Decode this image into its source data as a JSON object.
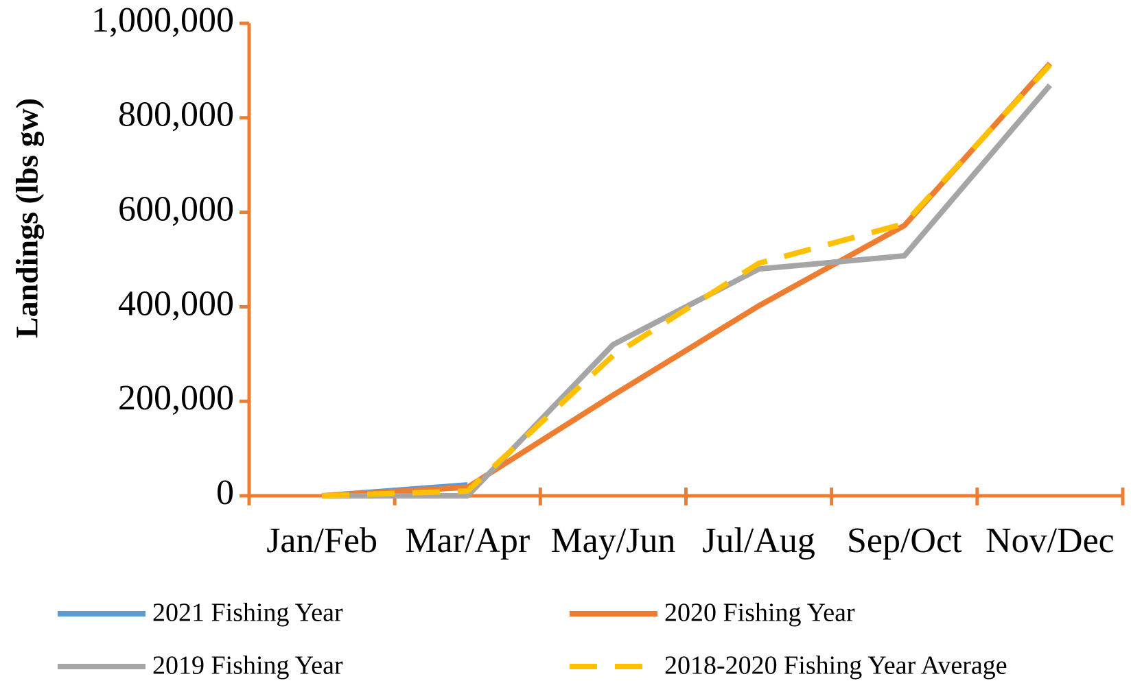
{
  "chart_data": {
    "type": "line",
    "ylabel": "Landings (lbs gw)",
    "categories": [
      "Jan/Feb",
      "Mar/Apr",
      "May/Jun",
      "Jul/Aug",
      "Sep/Oct",
      "Nov/Dec"
    ],
    "series": [
      {
        "name": "2021 Fishing Year",
        "color": "#5B9BD5",
        "values": [
          0,
          23000,
          null,
          null,
          null,
          null
        ]
      },
      {
        "name": "2020 Fishing Year",
        "color": "#ED7D31",
        "values": [
          0,
          18000,
          213000,
          402000,
          572000,
          915000
        ]
      },
      {
        "name": "2019 Fishing Year",
        "color": "#A5A5A5",
        "values": [
          0,
          0,
          320000,
          480000,
          508000,
          869000
        ]
      },
      {
        "name": "2018-2020 Fishing Year Average",
        "color": "#FFC000",
        "dashed": true,
        "values": [
          0,
          10000,
          297000,
          492000,
          576000,
          912000
        ]
      }
    ],
    "axis_color": "#ED7D31",
    "ylim": [
      0,
      1000000
    ],
    "yticks": [
      0,
      {
        "value": 200000,
        "label": "200,000"
      },
      {
        "value": 400000,
        "label": "400,000"
      },
      {
        "value": 600000,
        "label": "600,000"
      },
      {
        "value": 800000,
        "label": "800,000"
      },
      {
        "value": 1000000,
        "label": "1,000,000"
      }
    ],
    "grid": false
  }
}
